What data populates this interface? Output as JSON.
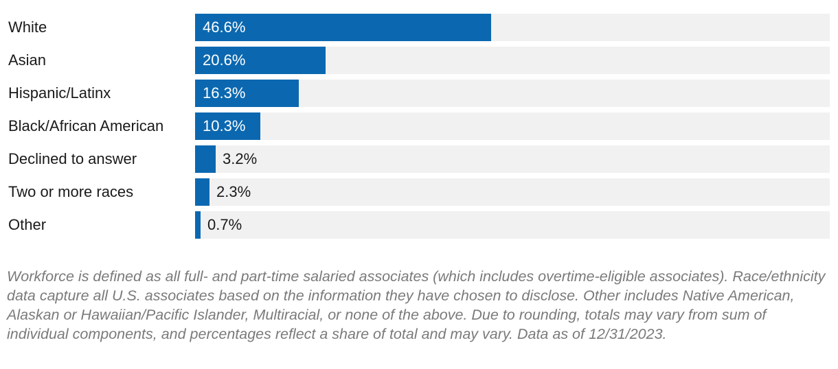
{
  "chart_data": {
    "type": "bar",
    "orientation": "horizontal",
    "categories": [
      "White",
      "Asian",
      "Hispanic/Latinx",
      "Black/African American",
      "Declined to answer",
      "Two or more races",
      "Other"
    ],
    "values": [
      46.6,
      20.6,
      16.3,
      10.3,
      3.2,
      2.3,
      0.7
    ],
    "value_labels": [
      "46.6%",
      "20.6%",
      "16.3%",
      "10.3%",
      "3.2%",
      "2.3%",
      "0.7%"
    ],
    "xlim": [
      0,
      100
    ],
    "grid": false,
    "legend": "none",
    "colors": {
      "bar": "#0b68b0",
      "track": "#f1f1f1"
    }
  },
  "footnote": "Workforce is defined as all full- and part-time salaried associates (which includes overtime-eligible associates). Race/ethnicity data capture all U.S. associates based on the information they have chosen to disclose. Other includes Native American, Alaskan or Hawaiian/Pacific Islander, Multiracial, or none of the above. Due to rounding, totals may vary from sum of individual components, and percentages reflect a share of total and may vary. Data as of 12/31/2023."
}
